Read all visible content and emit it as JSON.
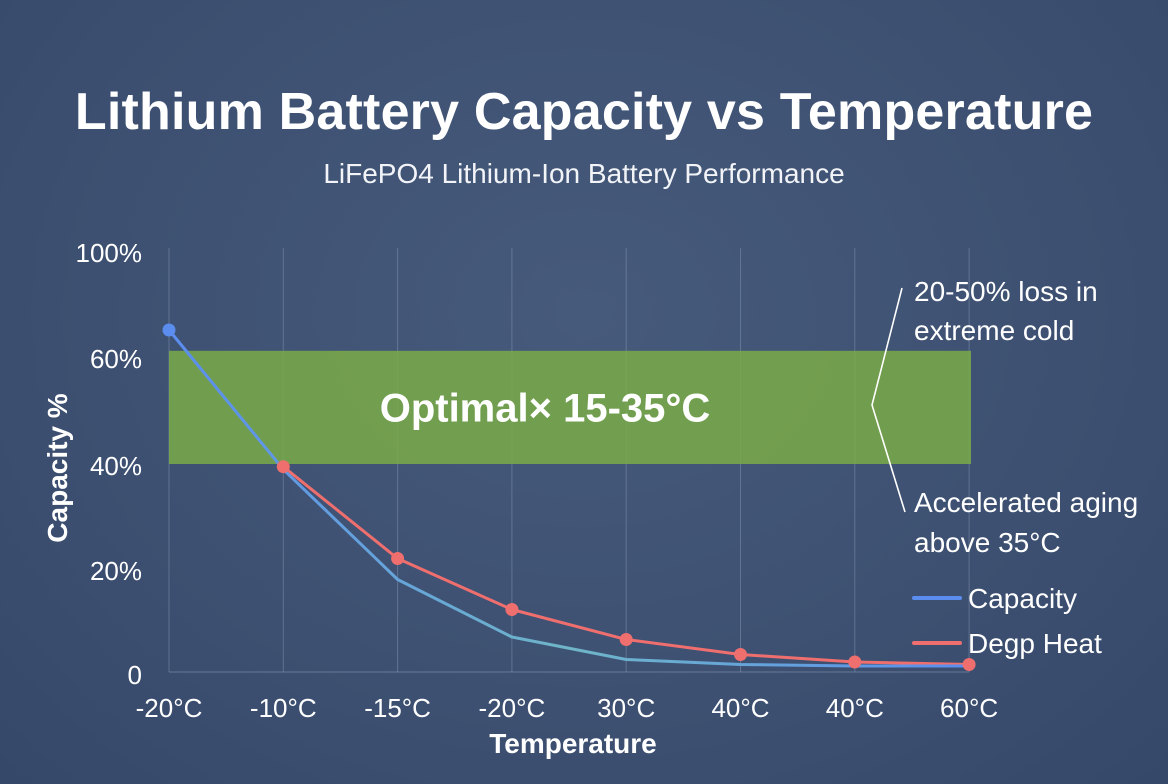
{
  "chart_data": {
    "type": "line",
    "title": "Lithium Battery Capacity vs Temperature",
    "subtitle": "LiFePO4 Lithium-Ion Battery Performance",
    "xlabel": "Temperature",
    "ylabel": "Capacity %",
    "categories": [
      "-20°C",
      "-10°C",
      "-15°C",
      "-20°C",
      "30°C",
      "40°C",
      "40°C",
      "60°C"
    ],
    "y_tick_labels": [
      "100%",
      "60%",
      "40%",
      "20%",
      "0"
    ],
    "series": [
      {
        "name": "Capacity",
        "color": "#5b8def",
        "values": [
          70,
          39,
          18.5,
          7,
          2.5,
          1.5,
          1.2,
          1.2
        ],
        "marker_indices": [
          0
        ]
      },
      {
        "name": "Degp Heat",
        "color": "#ef6e6e",
        "values": [
          null,
          39.5,
          22.5,
          12.5,
          6.5,
          3.5,
          2,
          1.5
        ],
        "marker_indices": [
          1,
          2,
          3,
          4,
          5,
          6,
          7
        ]
      }
    ],
    "band": {
      "label": "Optimal× 15-35°C",
      "y_range": [
        40,
        62
      ],
      "color": "#7aac48"
    },
    "annotations": [
      {
        "lines": [
          "20-50% loss in",
          "extreme cold"
        ]
      },
      {
        "lines": [
          "Accelerated aging",
          "above 35°C"
        ]
      }
    ],
    "legend_position": "right",
    "grid": {
      "vertical": true,
      "horizontal": false
    }
  }
}
